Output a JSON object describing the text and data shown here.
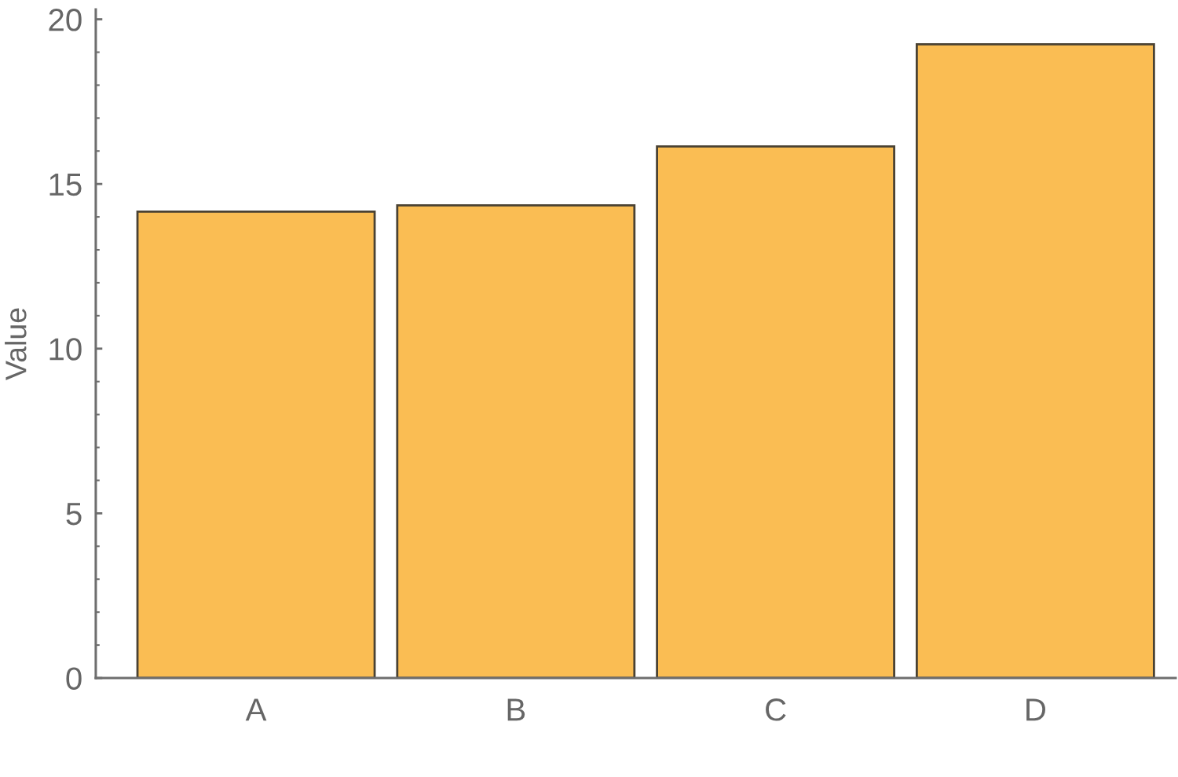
{
  "chart_data": {
    "type": "bar",
    "ylabel": "Value",
    "categories": [
      "A",
      "B",
      "C",
      "D"
    ],
    "values": [
      14.16,
      14.35,
      16.14,
      19.24
    ],
    "color": "#fabd53",
    "ylim": [
      0,
      20.3
    ],
    "yticks": [
      0,
      5,
      10,
      15,
      20
    ],
    "grid": false,
    "legend": false
  }
}
